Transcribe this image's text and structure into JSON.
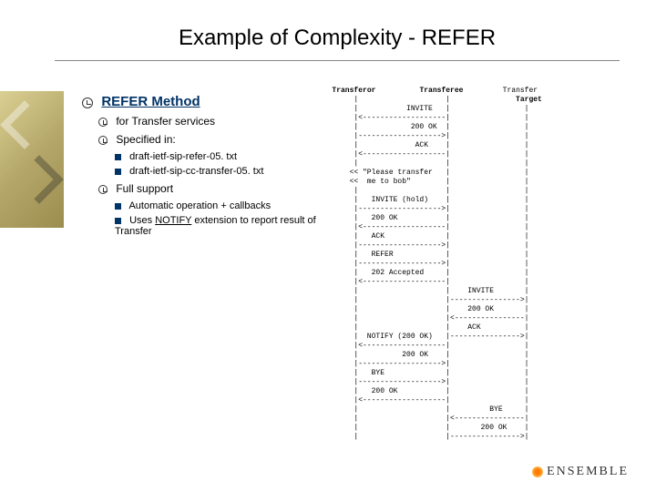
{
  "title": "Example of Complexity - REFER",
  "heading": "REFER Method",
  "bullets": {
    "b1": "for Transfer services",
    "b2": "Specified in:",
    "b2a": "draft-ietf-sip-refer-05. txt",
    "b2b": "draft-ietf-sip-cc-transfer-05. txt",
    "b3": "Full support",
    "b3a": "Automatic operation + callbacks",
    "b3b_pre": "Uses ",
    "b3b_u": "NOTIFY",
    "b3b_post": " extension to report result of Transfer"
  },
  "diagram": {
    "col1": "Transferor",
    "col2": "Transferee",
    "col3": "Transfer\nTarget",
    "lines": [
      "   Transferor          Transferee         Transfer",
      "        |                    |               Target",
      "        |           INVITE   |                 |",
      "        |<-------------------|                 |",
      "        |            200 OK  |                 |",
      "        |------------------->|                 |",
      "        |             ACK    |                 |",
      "        |<-------------------|                 |",
      "        |                    |                 |",
      "       << \"Please transfer   |                 |",
      "       <<  me to bob\"        |                 |",
      "        |                    |                 |",
      "        |   INVITE (hold)    |                 |",
      "        |------------------->|                 |",
      "        |   200 OK           |                 |",
      "        |<-------------------|                 |",
      "        |   ACK              |                 |",
      "        |------------------->|                 |",
      "        |   REFER            |                 |",
      "        |------------------->|                 |",
      "        |   202 Accepted     |                 |",
      "        |<-------------------|                 |",
      "        |                    |    INVITE       |",
      "        |                    |---------------->|",
      "        |                    |    200 OK       |",
      "        |                    |<----------------|",
      "        |                    |    ACK          |",
      "        |  NOTIFY (200 OK)   |---------------->|",
      "        |<-------------------|                 |",
      "        |          200 OK    |                 |",
      "        |------------------->|                 |",
      "        |   BYE              |                 |",
      "        |------------------->|                 |",
      "        |   200 OK           |                 |",
      "        |<-------------------|                 |",
      "        |                    |         BYE     |",
      "        |                    |<----------------|",
      "        |                    |       200 OK    |",
      "        |                    |---------------->|"
    ]
  },
  "logo": "ENSEMBLE"
}
